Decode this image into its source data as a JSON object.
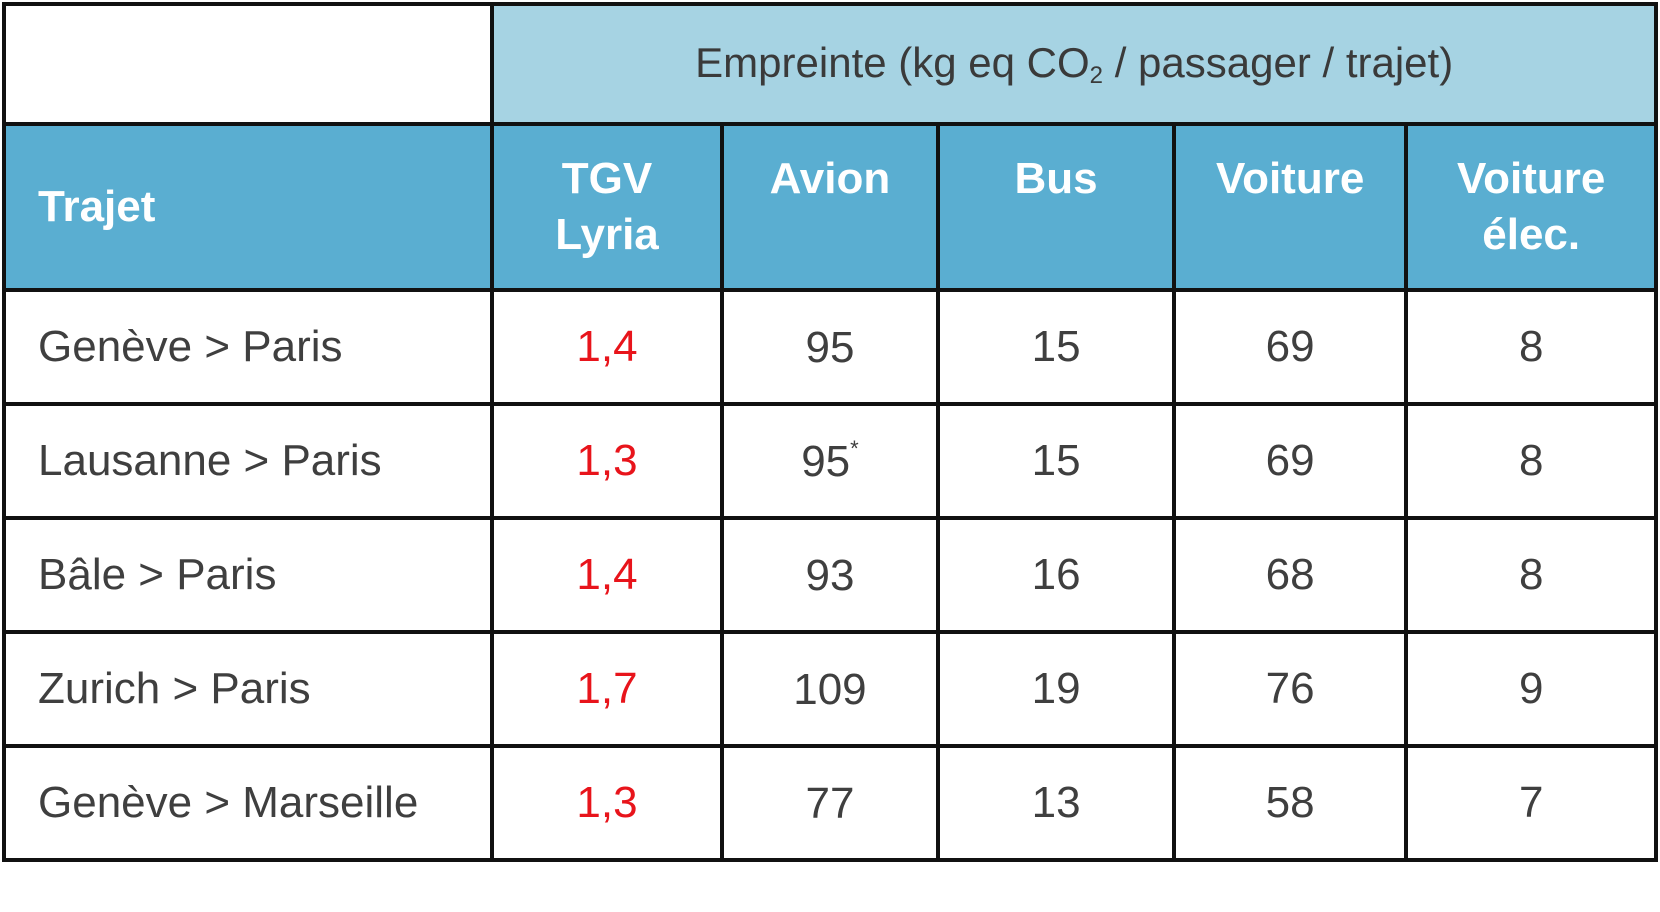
{
  "table": {
    "super_header": {
      "prefix": "Empreinte  (kg eq CO",
      "subscript": "2",
      "suffix": " / passager / trajet)"
    },
    "columns": [
      {
        "line1": "Trajet",
        "line2": ""
      },
      {
        "line1": "TGV",
        "line2": "Lyria"
      },
      {
        "line1": "Avion",
        "line2": ""
      },
      {
        "line1": "Bus",
        "line2": ""
      },
      {
        "line1": "Voiture",
        "line2": ""
      },
      {
        "line1": "Voiture",
        "line2": "élec."
      }
    ],
    "rows": [
      {
        "route": "Genève > Paris",
        "tgv": "1,4",
        "avion": "95",
        "avion_note": "",
        "bus": "15",
        "voiture": "69",
        "voiture_elec": "8"
      },
      {
        "route": "Lausanne > Paris",
        "tgv": "1,3",
        "avion": "95",
        "avion_note": "*",
        "bus": "15",
        "voiture": "69",
        "voiture_elec": "8"
      },
      {
        "route": "Bâle > Paris",
        "tgv": "1,4",
        "avion": "93",
        "avion_note": "",
        "bus": "16",
        "voiture": "68",
        "voiture_elec": "8"
      },
      {
        "route": "Zurich > Paris",
        "tgv": "1,7",
        "avion": "109",
        "avion_note": "",
        "bus": "19",
        "voiture": "76",
        "voiture_elec": "9"
      },
      {
        "route": "Genève > Marseille",
        "tgv": "1,3",
        "avion": "77",
        "avion_note": "",
        "bus": "13",
        "voiture": "58",
        "voiture_elec": "7"
      }
    ]
  },
  "colors": {
    "super_header_bg": "#a6d3e3",
    "column_header_bg": "#5aaed1",
    "tgv_value": "#e8141b",
    "border": "#111111"
  }
}
